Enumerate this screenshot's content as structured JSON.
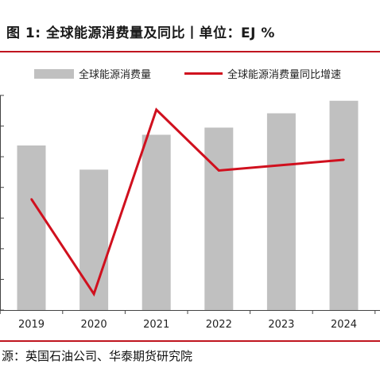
{
  "figure": {
    "title": "图 1: 全球能源消费量及同比丨单位：EJ %",
    "source": "源：英国石油公司、华泰期货研究院"
  },
  "legend": {
    "bar_label": "全球能源消费量",
    "line_label": "全球能源消费量同比增速"
  },
  "colors": {
    "bar": "#c0c0c0",
    "line": "#d0101e",
    "accent_rule": "#c0151f"
  },
  "chart_data": {
    "type": "bar",
    "categories": [
      "2019",
      "2020",
      "2021",
      "2022",
      "2023",
      "2024"
    ],
    "series": [
      {
        "name": "全球能源消费量",
        "type": "bar",
        "values": [
          584,
          557,
          596,
          604,
          620,
          634
        ]
      },
      {
        "name": "全球能源消费量同比增速",
        "type": "line",
        "values": [
          1.2,
          -4.1,
          6.2,
          2.8,
          3.1,
          3.4
        ]
      }
    ],
    "bar_ylim": [
      400,
      640
    ],
    "line_ylim": [
      -5,
      7
    ],
    "grid": false,
    "legend_position": "top"
  }
}
